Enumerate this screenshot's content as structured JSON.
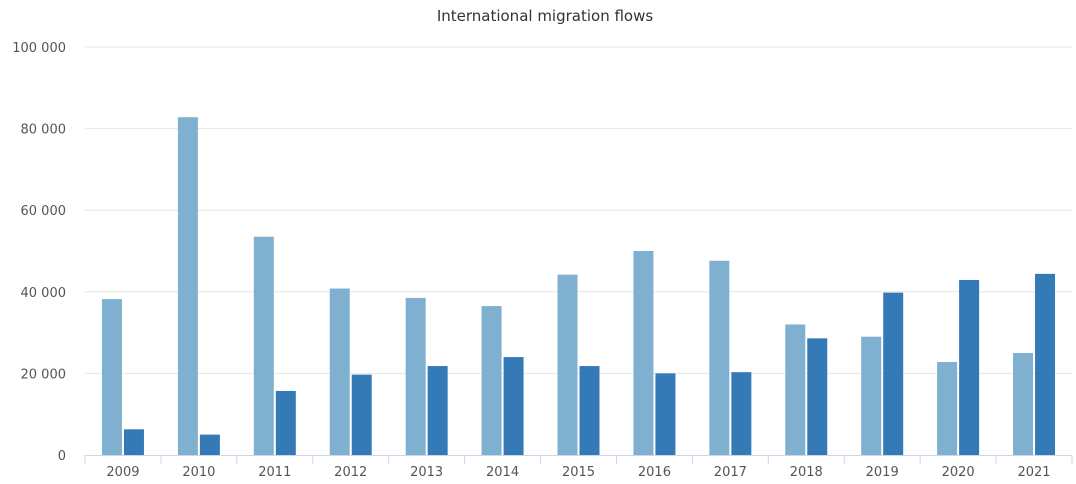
{
  "chart_data": {
    "type": "bar",
    "title": "International migration flows",
    "xlabel": "",
    "ylabel": "",
    "categories": [
      "2009",
      "2010",
      "2011",
      "2012",
      "2013",
      "2014",
      "2015",
      "2016",
      "2017",
      "2018",
      "2019",
      "2020",
      "2021"
    ],
    "series": [
      {
        "color": "#7fb0cf",
        "values": [
          38200,
          82800,
          53500,
          40800,
          38500,
          36500,
          44200,
          50000,
          47600,
          32000,
          29000,
          22800,
          25000
        ]
      },
      {
        "color": "#337ab7",
        "values": [
          6300,
          5000,
          15700,
          19700,
          21800,
          24000,
          21800,
          20000,
          20300,
          28600,
          39800,
          42900,
          44400
        ]
      }
    ],
    "ylim": [
      0,
      100000
    ],
    "yticks": [
      0,
      20000,
      40000,
      60000,
      80000,
      100000
    ],
    "ytick_labels": [
      "0",
      "20 000",
      "40 000",
      "60 000",
      "80 000",
      "100 000"
    ],
    "grid": true
  }
}
